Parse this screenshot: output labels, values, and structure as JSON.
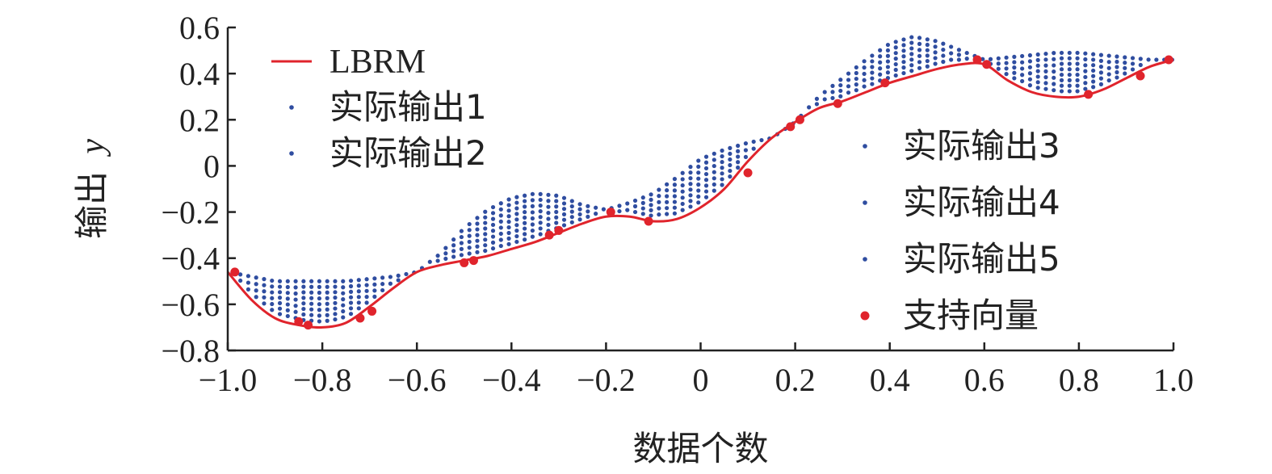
{
  "chart_data": {
    "type": "scatter",
    "title": "",
    "xlabel": "数据个数",
    "ylabel": "输出",
    "ylabel_var": "y",
    "xlim": [
      -1.0,
      1.0
    ],
    "ylim": [
      -0.8,
      0.6
    ],
    "xticks": [
      "−1.0",
      "−0.8",
      "−0.6",
      "−0.4",
      "−0.2",
      "0",
      "0.2",
      "0.4",
      "0.6",
      "0.8",
      "1.0"
    ],
    "xtick_values": [
      -1.0,
      -0.8,
      -0.6,
      -0.4,
      -0.2,
      0,
      0.2,
      0.4,
      0.6,
      0.8,
      1.0
    ],
    "yticks": [
      "−0.8",
      "−0.6",
      "−0.4",
      "−0.2",
      "0",
      "0.2",
      "0.4",
      "0.6"
    ],
    "ytick_values": [
      -0.8,
      -0.6,
      -0.4,
      -0.2,
      0,
      0.2,
      0.4,
      0.6
    ],
    "grid": false,
    "colors": {
      "line": "#e0242c",
      "scatter": "#2f4da0",
      "support": "#e0242c",
      "axis": "#222222"
    },
    "legend_left": [
      {
        "label": "LBRM",
        "marker": "line"
      },
      {
        "label": "实际输出1",
        "marker": "dot"
      },
      {
        "label": "实际输出2",
        "marker": "dot"
      }
    ],
    "legend_right": [
      {
        "label": "实际输出3",
        "marker": "dot"
      },
      {
        "label": "实际输出4",
        "marker": "dot"
      },
      {
        "label": "实际输出5",
        "marker": "dot"
      },
      {
        "label": "支持向量",
        "marker": "big-dot"
      }
    ],
    "series_lbrm": {
      "name": "LBRM",
      "x": [
        -1.0,
        -0.95,
        -0.9,
        -0.85,
        -0.8,
        -0.75,
        -0.7,
        -0.65,
        -0.6,
        -0.55,
        -0.5,
        -0.45,
        -0.4,
        -0.35,
        -0.3,
        -0.25,
        -0.2,
        -0.15,
        -0.1,
        -0.05,
        0,
        0.05,
        0.1,
        0.15,
        0.2,
        0.25,
        0.3,
        0.35,
        0.4,
        0.45,
        0.5,
        0.55,
        0.6,
        0.65,
        0.7,
        0.75,
        0.8,
        0.85,
        0.9,
        0.95,
        1.0
      ],
      "y": [
        -0.46,
        -0.58,
        -0.66,
        -0.69,
        -0.7,
        -0.68,
        -0.61,
        -0.53,
        -0.46,
        -0.43,
        -0.41,
        -0.39,
        -0.36,
        -0.33,
        -0.29,
        -0.25,
        -0.22,
        -0.22,
        -0.24,
        -0.23,
        -0.18,
        -0.1,
        0.02,
        0.12,
        0.19,
        0.25,
        0.28,
        0.32,
        0.36,
        0.39,
        0.42,
        0.44,
        0.44,
        0.37,
        0.32,
        0.3,
        0.3,
        0.33,
        0.38,
        0.43,
        0.46
      ]
    },
    "series_actual_offsets": {
      "names": [
        "实际输出1",
        "实际输出2",
        "实际输出3",
        "实际输出4",
        "实际输出5"
      ],
      "x_step": 0.0167,
      "envelope_x": [
        -1.0,
        -0.95,
        -0.9,
        -0.85,
        -0.8,
        -0.75,
        -0.7,
        -0.65,
        -0.6,
        -0.55,
        -0.5,
        -0.45,
        -0.4,
        -0.35,
        -0.3,
        -0.25,
        -0.2,
        -0.15,
        -0.1,
        -0.05,
        0,
        0.05,
        0.1,
        0.15,
        0.2,
        0.25,
        0.3,
        0.35,
        0.4,
        0.45,
        0.5,
        0.55,
        0.6,
        0.65,
        0.7,
        0.75,
        0.8,
        0.85,
        0.9,
        0.95,
        1.0
      ],
      "envelope_top": [
        -0.46,
        -0.48,
        -0.5,
        -0.5,
        -0.5,
        -0.5,
        -0.49,
        -0.48,
        -0.46,
        -0.38,
        -0.27,
        -0.19,
        -0.14,
        -0.12,
        -0.13,
        -0.17,
        -0.19,
        -0.16,
        -0.12,
        -0.05,
        0.03,
        0.07,
        0.1,
        0.12,
        0.19,
        0.3,
        0.38,
        0.46,
        0.53,
        0.56,
        0.54,
        0.5,
        0.46,
        0.47,
        0.48,
        0.49,
        0.49,
        0.48,
        0.47,
        0.46,
        0.46
      ]
    },
    "support_vectors": {
      "name": "支持向量",
      "x": [
        -0.985,
        -0.85,
        -0.83,
        -0.72,
        -0.695,
        -0.5,
        -0.48,
        -0.32,
        -0.3,
        -0.19,
        -0.11,
        0.1,
        0.19,
        0.21,
        0.29,
        0.39,
        0.585,
        0.605,
        0.82,
        0.93,
        0.99
      ],
      "y": [
        -0.46,
        -0.675,
        -0.69,
        -0.66,
        -0.63,
        -0.42,
        -0.41,
        -0.3,
        -0.28,
        -0.2,
        -0.24,
        -0.03,
        0.17,
        0.2,
        0.27,
        0.36,
        0.46,
        0.44,
        0.31,
        0.39,
        0.46
      ]
    }
  }
}
